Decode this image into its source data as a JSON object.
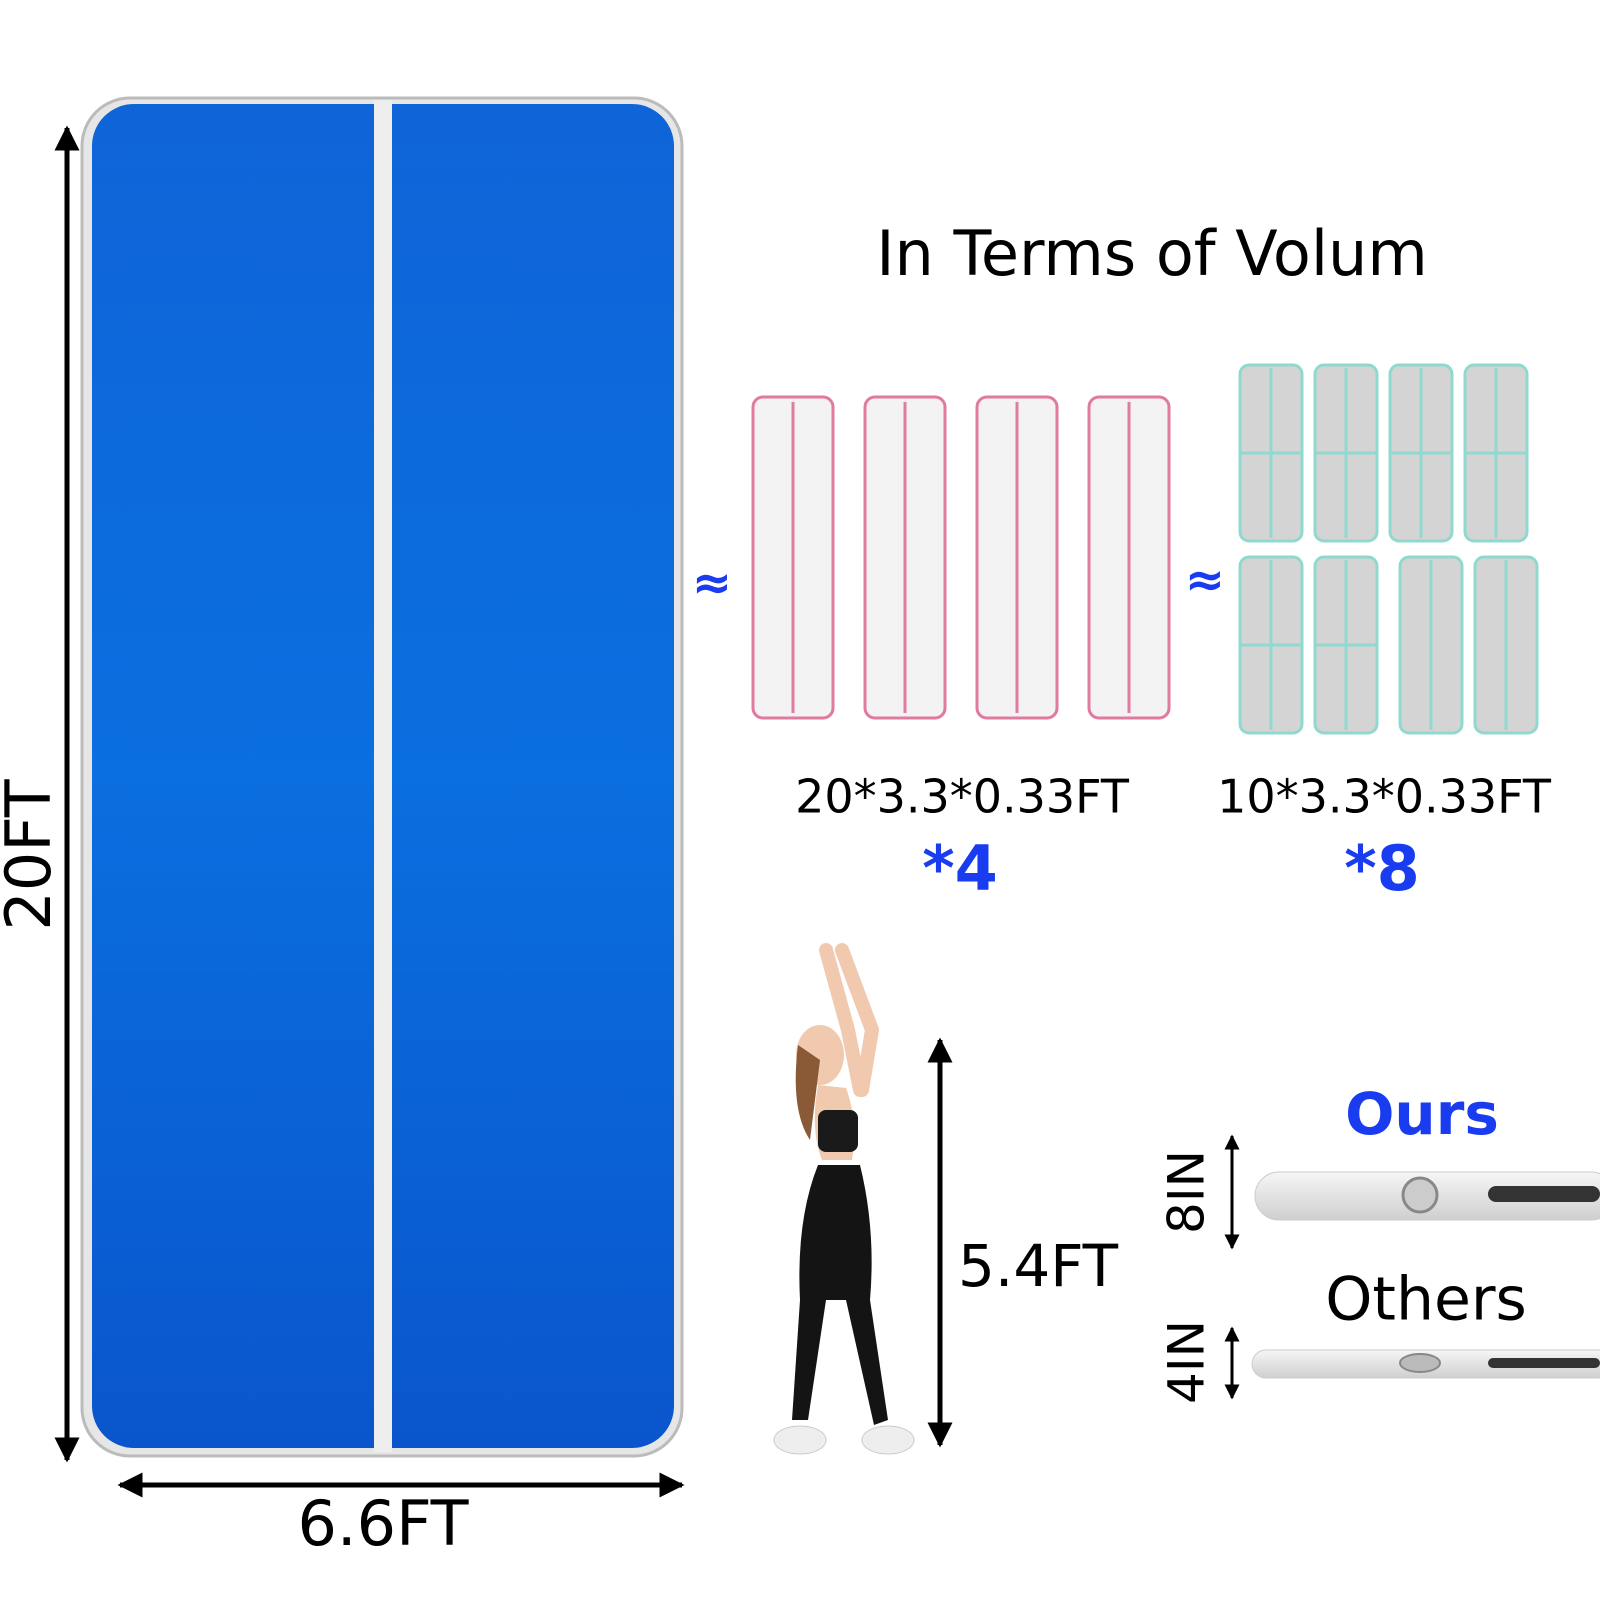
{
  "main_mat": {
    "length_label": "20FT",
    "width_label": "6.6FT"
  },
  "comparison": {
    "title": "In Terms of Volum",
    "groups": [
      {
        "approx": "≈",
        "size": "20*3.3*0.33FT",
        "multiplier": "*4"
      },
      {
        "approx": "≈",
        "size": "10*3.3*0.33FT",
        "multiplier": "*8"
      }
    ]
  },
  "person": {
    "height_label": "5.4FT"
  },
  "thickness": {
    "ours": {
      "label": "Ours",
      "height": "8IN"
    },
    "others": {
      "label": "Others",
      "height": "4IN"
    }
  }
}
